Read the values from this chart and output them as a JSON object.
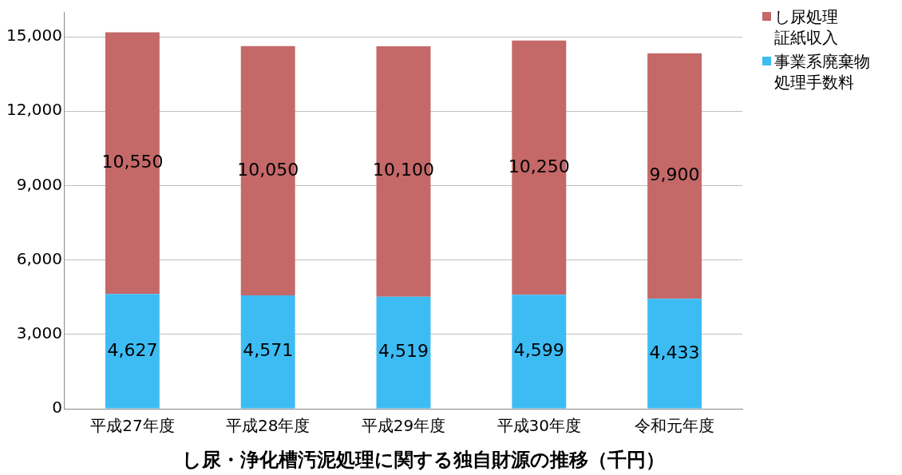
{
  "chart_data": {
    "type": "bar",
    "stacked": true,
    "title": "し尿・浄化槽汚泥処理に関する独自財源の推移（千円）",
    "categories": [
      "平成27年度",
      "平成28年度",
      "平成29年度",
      "平成30年度",
      "令和元年度"
    ],
    "series": [
      {
        "name": "事業系廃棄物処理手数料",
        "color": "#3dbcf4",
        "values": [
          4627,
          4571,
          4519,
          4599,
          4433
        ],
        "value_labels": [
          "4,627",
          "4,571",
          "4,519",
          "4,599",
          "4,433"
        ]
      },
      {
        "name": "し尿処理証紙収入",
        "color": "#c46868",
        "values": [
          10550,
          10050,
          10100,
          10250,
          9900
        ],
        "value_labels": [
          "10,550",
          "10,050",
          "10,100",
          "10,250",
          "9,900"
        ]
      }
    ],
    "ylim": [
      0,
      16000
    ],
    "yticks": [
      {
        "value": 0,
        "label": "0"
      },
      {
        "value": 3000,
        "label": "3,000"
      },
      {
        "value": 6000,
        "label": "6,000"
      },
      {
        "value": 9000,
        "label": "9,000"
      },
      {
        "value": 12000,
        "label": "12,000"
      },
      {
        "value": 15000,
        "label": "15,000"
      }
    ],
    "grid": "y",
    "legend": "top right"
  }
}
